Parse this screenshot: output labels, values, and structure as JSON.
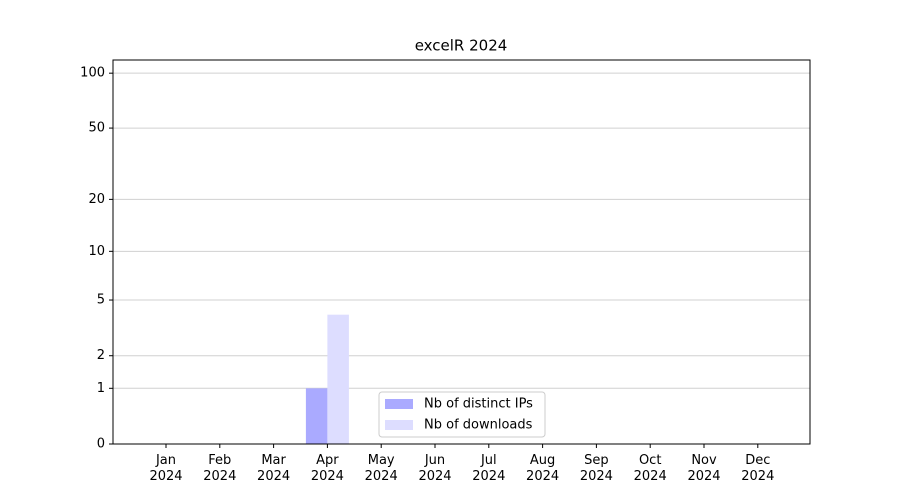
{
  "chart_data": {
    "type": "bar",
    "title": "excelR 2024",
    "categories": [
      "Jan\n2024",
      "Feb\n2024",
      "Mar\n2024",
      "Apr\n2024",
      "May\n2024",
      "Jun\n2024",
      "Jul\n2024",
      "Aug\n2024",
      "Sep\n2024",
      "Oct\n2024",
      "Nov\n2024",
      "Dec\n2024"
    ],
    "series": [
      {
        "name": "Nb of distinct IPs",
        "color": "#aaaaff",
        "values": [
          0,
          0,
          0,
          1,
          0,
          0,
          0,
          0,
          0,
          0,
          0,
          0
        ]
      },
      {
        "name": "Nb of downloads",
        "color": "#ddddff",
        "values": [
          0,
          0,
          0,
          4,
          0,
          0,
          0,
          0,
          0,
          0,
          0,
          0
        ]
      }
    ],
    "yscale": "log1p",
    "ylim": [
      0,
      118
    ],
    "yticks": [
      0,
      1,
      2,
      5,
      10,
      20,
      50,
      100
    ],
    "grid": true,
    "legend": "lower center"
  }
}
